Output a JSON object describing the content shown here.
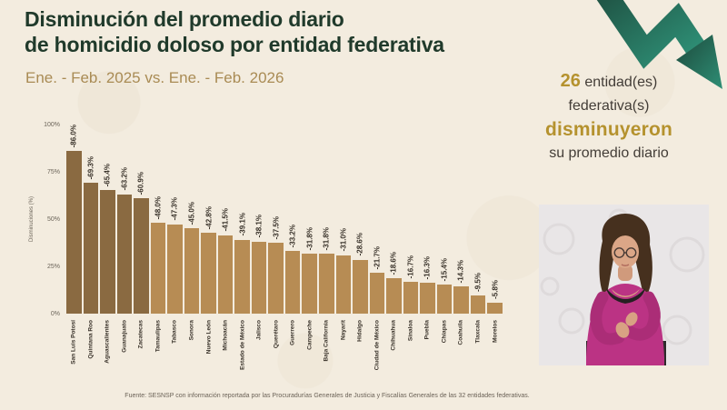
{
  "slide": {
    "title_line1": "Disminución del promedio diario",
    "title_line2": "de homicidio doloso por entidad federativa",
    "subtitle": "Ene. - Feb. 2025 vs. Ene. - Feb. 2026",
    "footer": "Fuente: SESNSP con información reportada por las Procuradurías Generales de Justicia y Fiscalías Generales de las 32 entidades federativas."
  },
  "summary": {
    "count": "26",
    "entity_word": " entidad(es)",
    "line2": "federativa(s)",
    "highlight": "disminuyeron",
    "line4": "su promedio diario"
  },
  "chart_data": {
    "type": "bar",
    "ylabel": "Disminuciones (%)",
    "ylim": [
      0,
      100
    ],
    "ytick_values": [
      0,
      25,
      50,
      75,
      100
    ],
    "ytick_labels": [
      "0%",
      "25%",
      "50%",
      "75%",
      "100%"
    ],
    "categories": [
      "San Luis Potosí",
      "Quintana Roo",
      "Aguascalientes",
      "Guanajuato",
      "Zacatecas",
      "Tamaulipas",
      "Tabasco",
      "Sonora",
      "Nuevo León",
      "Michoacán",
      "Estado de México",
      "Jalisco",
      "Querétaro",
      "Guerrero",
      "Campeche",
      "Baja California",
      "Nayarit",
      "Hidalgo",
      "Ciudad de México",
      "Chihuahua",
      "Sinaloa",
      "Puebla",
      "Chiapas",
      "Coahuila",
      "Tlaxcala",
      "Morelos"
    ],
    "values": [
      86.0,
      69.3,
      65.4,
      63.2,
      60.9,
      48.0,
      47.3,
      45.0,
      42.8,
      41.5,
      39.1,
      38.1,
      37.5,
      33.2,
      31.8,
      31.8,
      31.0,
      28.6,
      21.7,
      18.6,
      16.7,
      16.3,
      15.4,
      14.3,
      9.5,
      5.8
    ],
    "bar_labels": [
      "-86.0%",
      "-69.3%",
      "-65.4%",
      "-63.2%",
      "-60.9%",
      "-48.0%",
      "-47.3%",
      "-45.0%",
      "-42.8%",
      "-41.5%",
      "-39.1%",
      "-38.1%",
      "-37.5%",
      "-33.2%",
      "-31.8%",
      "-31.8%",
      "-31.0%",
      "-28.6%",
      "-21.7%",
      "-18.6%",
      "-16.7%",
      "-16.3%",
      "-15.4%",
      "-14.3%",
      "-9.5%",
      "-5.8%"
    ],
    "dark_bar_count": 5
  },
  "colors": {
    "background": "#f3ecdf",
    "title_green": "#203a2b",
    "subtitle_gold": "#a98b54",
    "accent_gold": "#b5922e",
    "bar_dark": "#8a6a41",
    "bar_light": "#b78c54",
    "arrow_dark": "#1d4a3c",
    "arrow_teal": "#2e8e75"
  }
}
